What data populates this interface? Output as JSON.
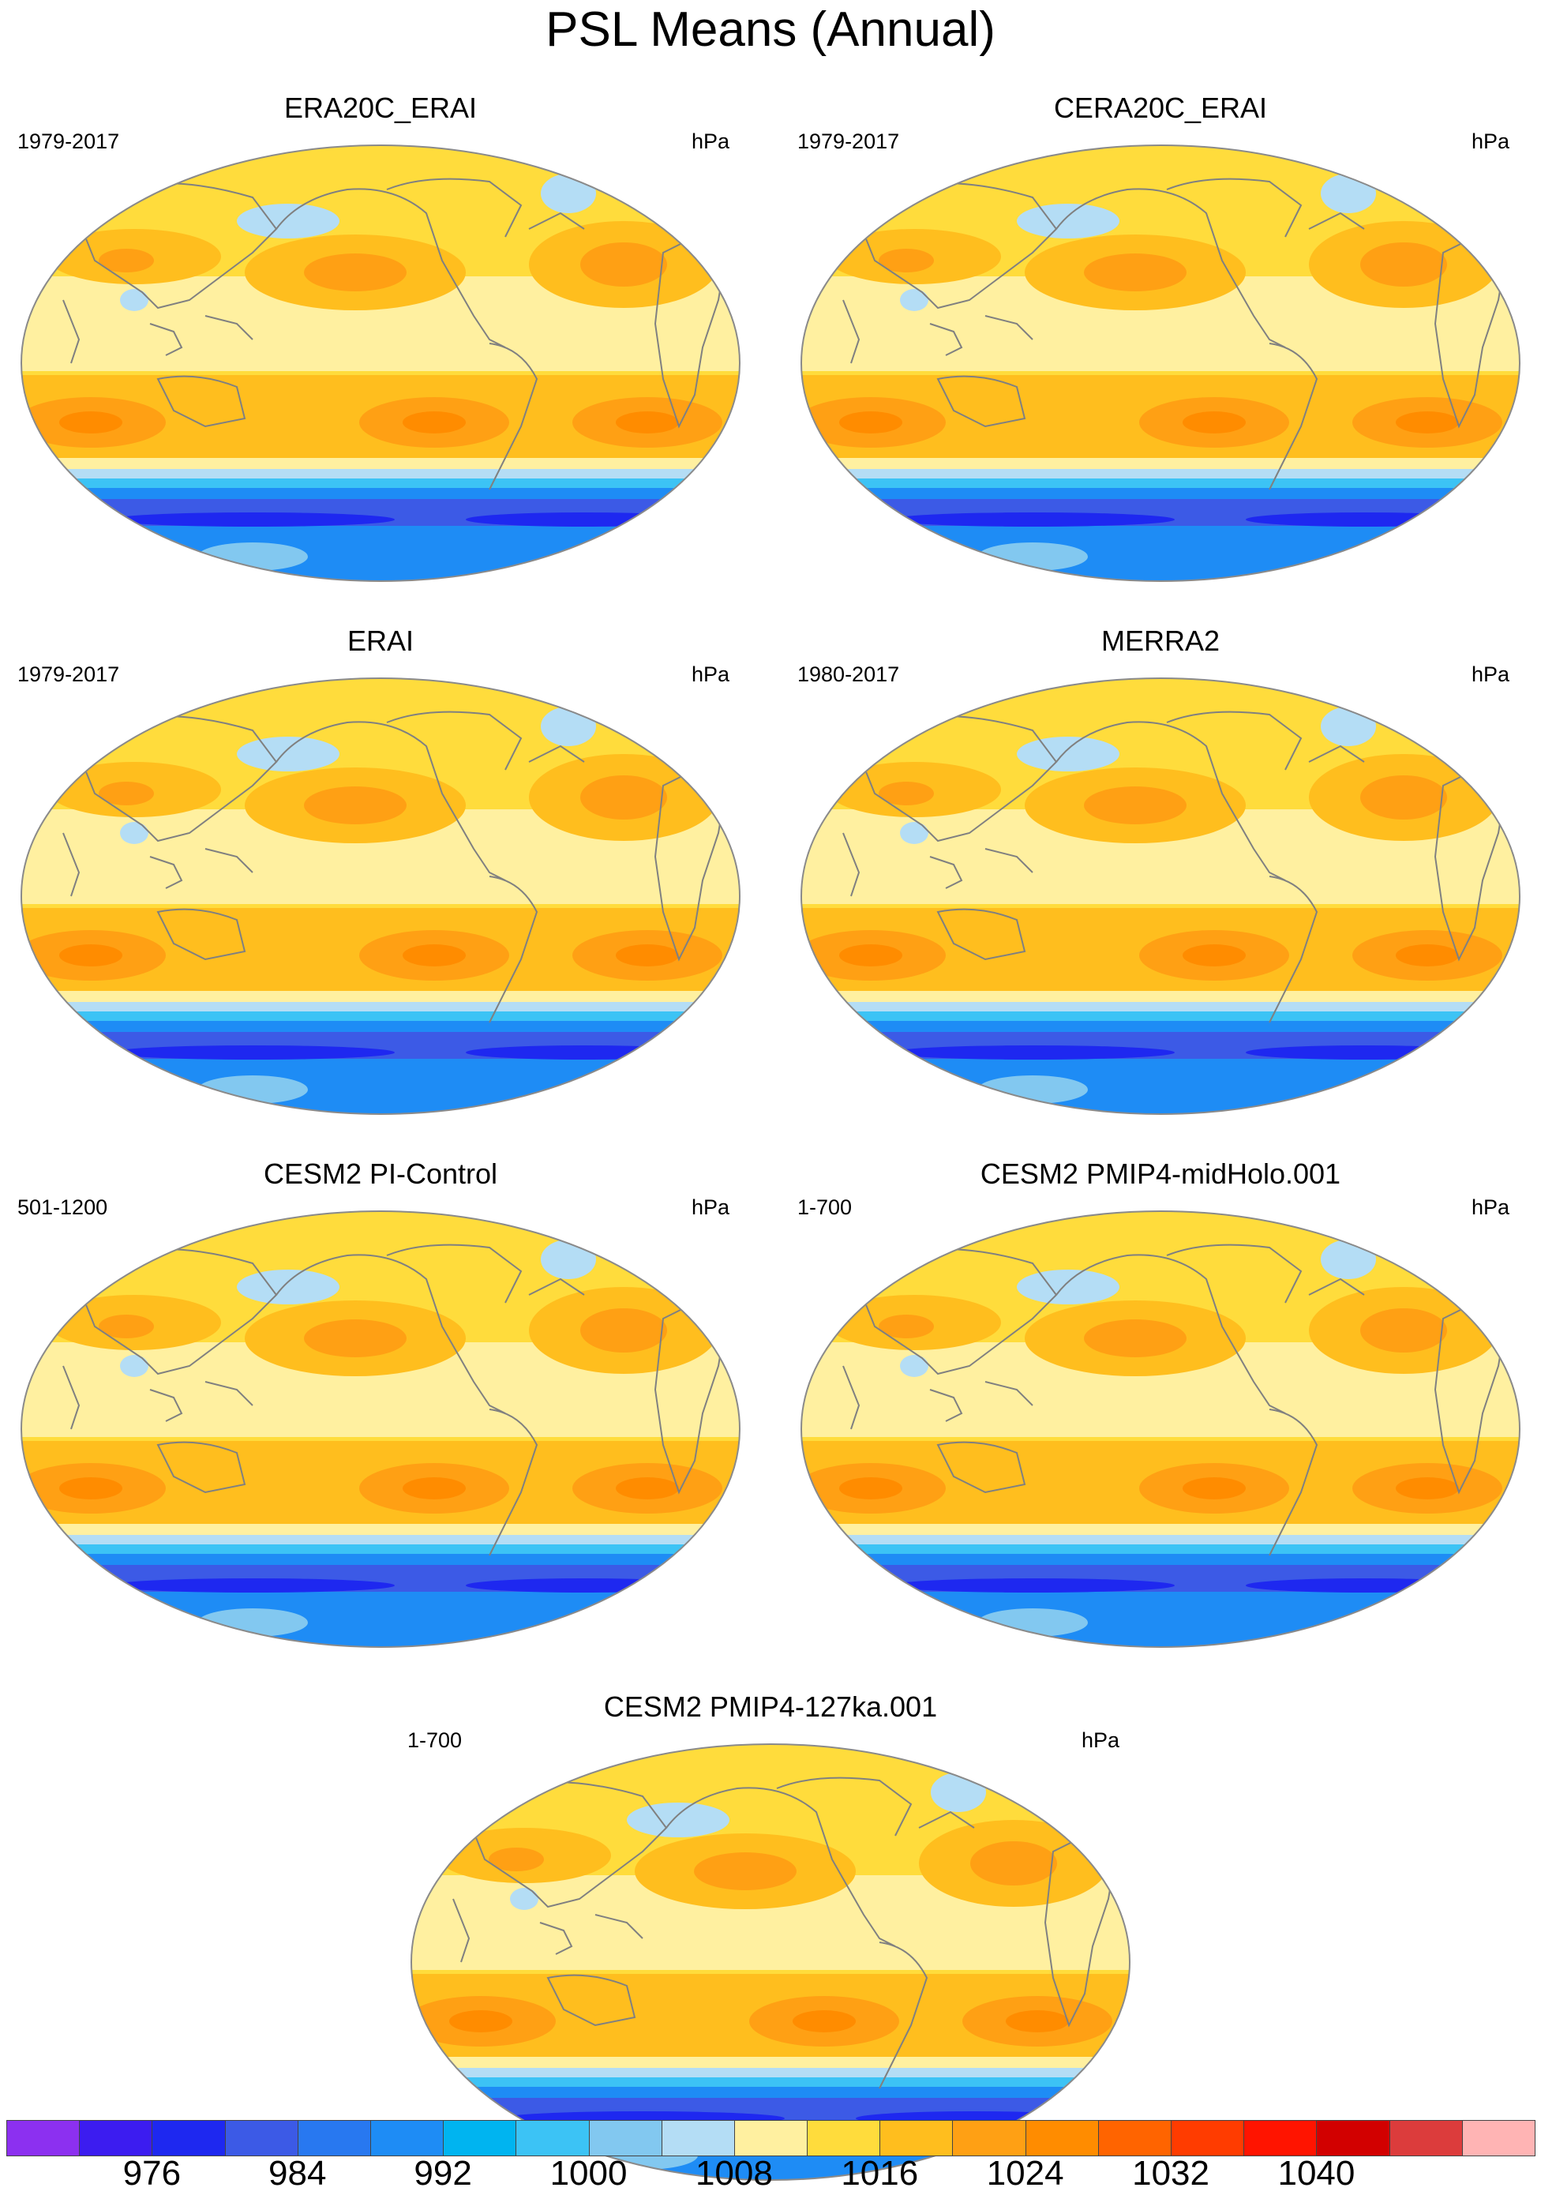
{
  "title": "PSL Means (Annual)",
  "panels": [
    {
      "title": "ERA20C_ERAI",
      "period": "1979-2017",
      "units": "hPa"
    },
    {
      "title": "CERA20C_ERAI",
      "period": "1979-2017",
      "units": "hPa"
    },
    {
      "title": "ERAI",
      "period": "1979-2017",
      "units": "hPa"
    },
    {
      "title": "MERRA2",
      "period": "1980-2017",
      "units": "hPa"
    },
    {
      "title": "CESM2 PI-Control",
      "period": "501-1200",
      "units": "hPa"
    },
    {
      "title": "CESM2 PMIP4-midHolo.001",
      "period": "1-700",
      "units": "hPa"
    },
    {
      "title": "CESM2 PMIP4-127ka.001",
      "period": "1-700",
      "units": "hPa"
    }
  ],
  "colorbar": {
    "labels": [
      "976",
      "984",
      "992",
      "1000",
      "1008",
      "1016",
      "1024",
      "1032",
      "1040"
    ],
    "colors": [
      "#8c30f0",
      "#3c1cf0",
      "#1e28f0",
      "#3c5ae6",
      "#2878f0",
      "#1e8cf5",
      "#00b4f0",
      "#3cc3f5",
      "#82c8f0",
      "#b4ddf5",
      "#fff0a0",
      "#ffdc3c",
      "#ffbe1e",
      "#ffa014",
      "#ff8c00",
      "#ff6400",
      "#ff3c00",
      "#ff1400",
      "#d20000",
      "#dc3c3c",
      "#ffb4b4"
    ]
  }
}
